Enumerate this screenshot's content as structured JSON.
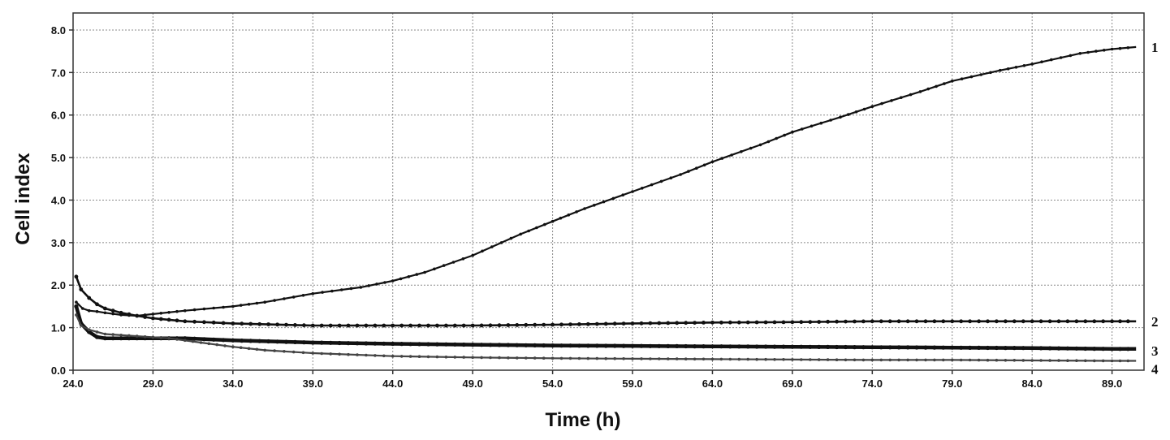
{
  "chart_data": {
    "type": "line",
    "title": "",
    "xlabel": "Time (h)",
    "ylabel": "Cell index",
    "xlim": [
      24.0,
      91.0
    ],
    "ylim": [
      0.0,
      8.4
    ],
    "xticks": [
      "24.0",
      "29.0",
      "34.0",
      "39.0",
      "44.0",
      "49.0",
      "54.0",
      "59.0",
      "64.0",
      "69.0",
      "74.0",
      "79.0",
      "84.0",
      "89.0"
    ],
    "yticks": [
      "0.0",
      "1.0",
      "2.0",
      "3.0",
      "4.0",
      "5.0",
      "6.0",
      "7.0",
      "8.0"
    ],
    "grid": true,
    "legend": "none (series numbered at right end)",
    "series": [
      {
        "name": "1",
        "color": "#111111",
        "points": [
          [
            24.2,
            1.6
          ],
          [
            24.6,
            1.45
          ],
          [
            25.0,
            1.4
          ],
          [
            25.5,
            1.38
          ],
          [
            26.0,
            1.35
          ],
          [
            27.0,
            1.3
          ],
          [
            28.0,
            1.28
          ],
          [
            29.0,
            1.32
          ],
          [
            31.0,
            1.4
          ],
          [
            34.0,
            1.5
          ],
          [
            36.0,
            1.6
          ],
          [
            39.0,
            1.8
          ],
          [
            42.0,
            1.95
          ],
          [
            44.0,
            2.1
          ],
          [
            46.0,
            2.3
          ],
          [
            49.0,
            2.7
          ],
          [
            52.0,
            3.2
          ],
          [
            54.0,
            3.5
          ],
          [
            56.0,
            3.8
          ],
          [
            59.0,
            4.2
          ],
          [
            62.0,
            4.6
          ],
          [
            64.0,
            4.9
          ],
          [
            67.0,
            5.3
          ],
          [
            69.0,
            5.6
          ],
          [
            72.0,
            5.95
          ],
          [
            74.0,
            6.2
          ],
          [
            77.0,
            6.55
          ],
          [
            79.0,
            6.8
          ],
          [
            82.0,
            7.05
          ],
          [
            84.0,
            7.2
          ],
          [
            87.0,
            7.45
          ],
          [
            89.0,
            7.55
          ],
          [
            90.5,
            7.6
          ]
        ]
      },
      {
        "name": "2",
        "color": "#111111",
        "points": [
          [
            24.2,
            2.2
          ],
          [
            24.5,
            1.9
          ],
          [
            25.0,
            1.7
          ],
          [
            25.5,
            1.55
          ],
          [
            26.0,
            1.45
          ],
          [
            27.0,
            1.35
          ],
          [
            28.0,
            1.28
          ],
          [
            29.0,
            1.22
          ],
          [
            31.0,
            1.15
          ],
          [
            34.0,
            1.1
          ],
          [
            39.0,
            1.05
          ],
          [
            44.0,
            1.05
          ],
          [
            49.0,
            1.05
          ],
          [
            54.0,
            1.07
          ],
          [
            59.0,
            1.1
          ],
          [
            64.0,
            1.12
          ],
          [
            69.0,
            1.13
          ],
          [
            74.0,
            1.15
          ],
          [
            79.0,
            1.15
          ],
          [
            84.0,
            1.15
          ],
          [
            89.0,
            1.15
          ],
          [
            90.5,
            1.15
          ]
        ]
      },
      {
        "name": "3",
        "color": "#111111",
        "points": [
          [
            24.2,
            1.5
          ],
          [
            24.5,
            1.1
          ],
          [
            25.0,
            0.9
          ],
          [
            25.5,
            0.78
          ],
          [
            26.0,
            0.75
          ],
          [
            27.0,
            0.75
          ],
          [
            29.0,
            0.75
          ],
          [
            31.0,
            0.75
          ],
          [
            34.0,
            0.7
          ],
          [
            39.0,
            0.65
          ],
          [
            44.0,
            0.62
          ],
          [
            49.0,
            0.6
          ],
          [
            54.0,
            0.58
          ],
          [
            59.0,
            0.57
          ],
          [
            64.0,
            0.56
          ],
          [
            69.0,
            0.55
          ],
          [
            74.0,
            0.54
          ],
          [
            79.0,
            0.53
          ],
          [
            84.0,
            0.52
          ],
          [
            89.0,
            0.5
          ],
          [
            90.5,
            0.5
          ]
        ]
      },
      {
        "name": "4",
        "color": "#444444",
        "points": [
          [
            24.2,
            1.3
          ],
          [
            24.5,
            1.05
          ],
          [
            25.0,
            0.95
          ],
          [
            26.0,
            0.85
          ],
          [
            28.0,
            0.8
          ],
          [
            30.0,
            0.75
          ],
          [
            32.0,
            0.65
          ],
          [
            34.0,
            0.55
          ],
          [
            36.0,
            0.47
          ],
          [
            39.0,
            0.4
          ],
          [
            44.0,
            0.33
          ],
          [
            49.0,
            0.3
          ],
          [
            54.0,
            0.28
          ],
          [
            59.0,
            0.27
          ],
          [
            64.0,
            0.26
          ],
          [
            69.0,
            0.25
          ],
          [
            74.0,
            0.24
          ],
          [
            79.0,
            0.24
          ],
          [
            84.0,
            0.23
          ],
          [
            89.0,
            0.22
          ],
          [
            90.5,
            0.22
          ]
        ]
      }
    ]
  }
}
